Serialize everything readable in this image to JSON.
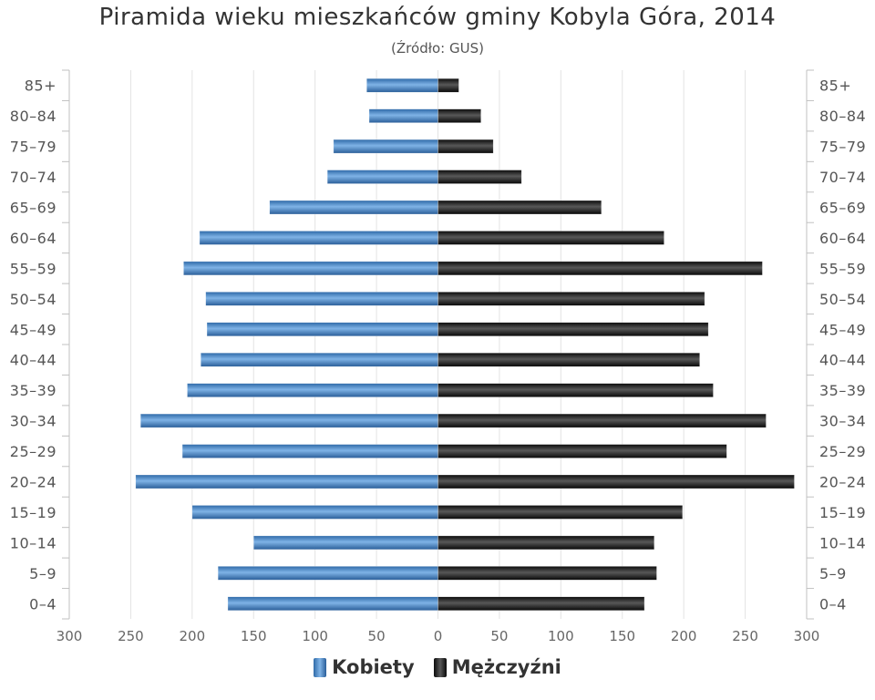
{
  "chart_data": {
    "type": "bar",
    "title": "Piramida wieku mieszkańców gminy Kobyla Góra, 2014",
    "subtitle": "(Źródło: GUS)",
    "categories": [
      "85+",
      "80–84",
      "75–79",
      "70–74",
      "65–69",
      "60–64",
      "55–59",
      "50–54",
      "45–49",
      "40–44",
      "35–39",
      "30–34",
      "25–29",
      "20–24",
      "15–19",
      "10–14",
      "5–9",
      "0–4"
    ],
    "series": [
      {
        "name": "Kobiety",
        "color": "#3f7fc0",
        "side": "left",
        "values": [
          58,
          56,
          85,
          90,
          137,
          194,
          207,
          189,
          188,
          193,
          204,
          242,
          208,
          246,
          200,
          150,
          179,
          171
        ]
      },
      {
        "name": "Mężczyźni",
        "color": "#1e1e1e",
        "side": "right",
        "values": [
          17,
          35,
          45,
          68,
          133,
          184,
          264,
          217,
          220,
          213,
          224,
          267,
          235,
          290,
          199,
          176,
          178,
          168
        ]
      }
    ],
    "xticks": [
      "300",
      "250",
      "200",
      "150",
      "100",
      "50",
      "0",
      "50",
      "100",
      "150",
      "200",
      "250",
      "300"
    ],
    "xlim": [
      -300,
      300
    ],
    "grid": true,
    "legend": "bottom"
  }
}
